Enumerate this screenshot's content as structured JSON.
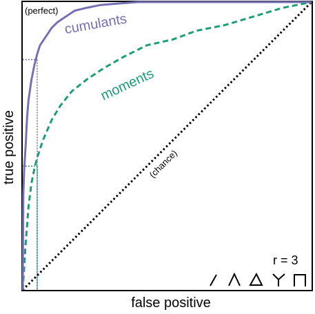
{
  "chart_data": {
    "type": "line",
    "xlabel": "false positive",
    "ylabel": "true positive",
    "xlim": [
      0,
      1
    ],
    "ylim": [
      0,
      1
    ],
    "grid": false,
    "legend": "none",
    "annotations": {
      "perfect": "(perfect)",
      "chance": "(chance)",
      "r_label": "r = 3"
    },
    "motif_icons": [
      "edge-icon",
      "wedge-icon",
      "triangle-icon",
      "star-icon",
      "path-icon"
    ],
    "series": [
      {
        "name": "cumulants",
        "color": "#7570b3",
        "style": "solid",
        "x": [
          0,
          0.002,
          0.005,
          0.01,
          0.015,
          0.02,
          0.03,
          0.04,
          0.05,
          0.06,
          0.08,
          0.1,
          0.12,
          0.15,
          0.18,
          0.22,
          0.27,
          0.33,
          0.4,
          0.5,
          0.6,
          0.7,
          0.8,
          0.9,
          1.0
        ],
        "y": [
          0,
          0.33,
          0.42,
          0.5,
          0.6,
          0.66,
          0.73,
          0.78,
          0.82,
          0.85,
          0.88,
          0.91,
          0.93,
          0.95,
          0.97,
          0.98,
          0.99,
          0.995,
          1.0,
          1.0,
          1.0,
          1.0,
          1.0,
          1.0,
          1.0
        ]
      },
      {
        "name": "moments",
        "color": "#1b9e77",
        "style": "dashed",
        "x": [
          0,
          0.005,
          0.01,
          0.02,
          0.03,
          0.04,
          0.05,
          0.07,
          0.1,
          0.13,
          0.17,
          0.22,
          0.28,
          0.35,
          0.43,
          0.52,
          0.6,
          0.7,
          0.8,
          0.9,
          1.0
        ],
        "y": [
          0,
          0.08,
          0.16,
          0.29,
          0.37,
          0.42,
          0.46,
          0.52,
          0.59,
          0.64,
          0.69,
          0.73,
          0.77,
          0.81,
          0.85,
          0.87,
          0.9,
          0.92,
          0.95,
          0.98,
          1.0
        ]
      },
      {
        "name": "(chance)",
        "color": "#000000",
        "style": "dotted",
        "x": [
          0,
          1
        ],
        "y": [
          0,
          1
        ]
      }
    ],
    "reference_lines": [
      {
        "series": "cumulants",
        "x": 0.05,
        "y": 0.8
      },
      {
        "series": "moments",
        "x": 0.05,
        "y": 0.43
      }
    ]
  }
}
